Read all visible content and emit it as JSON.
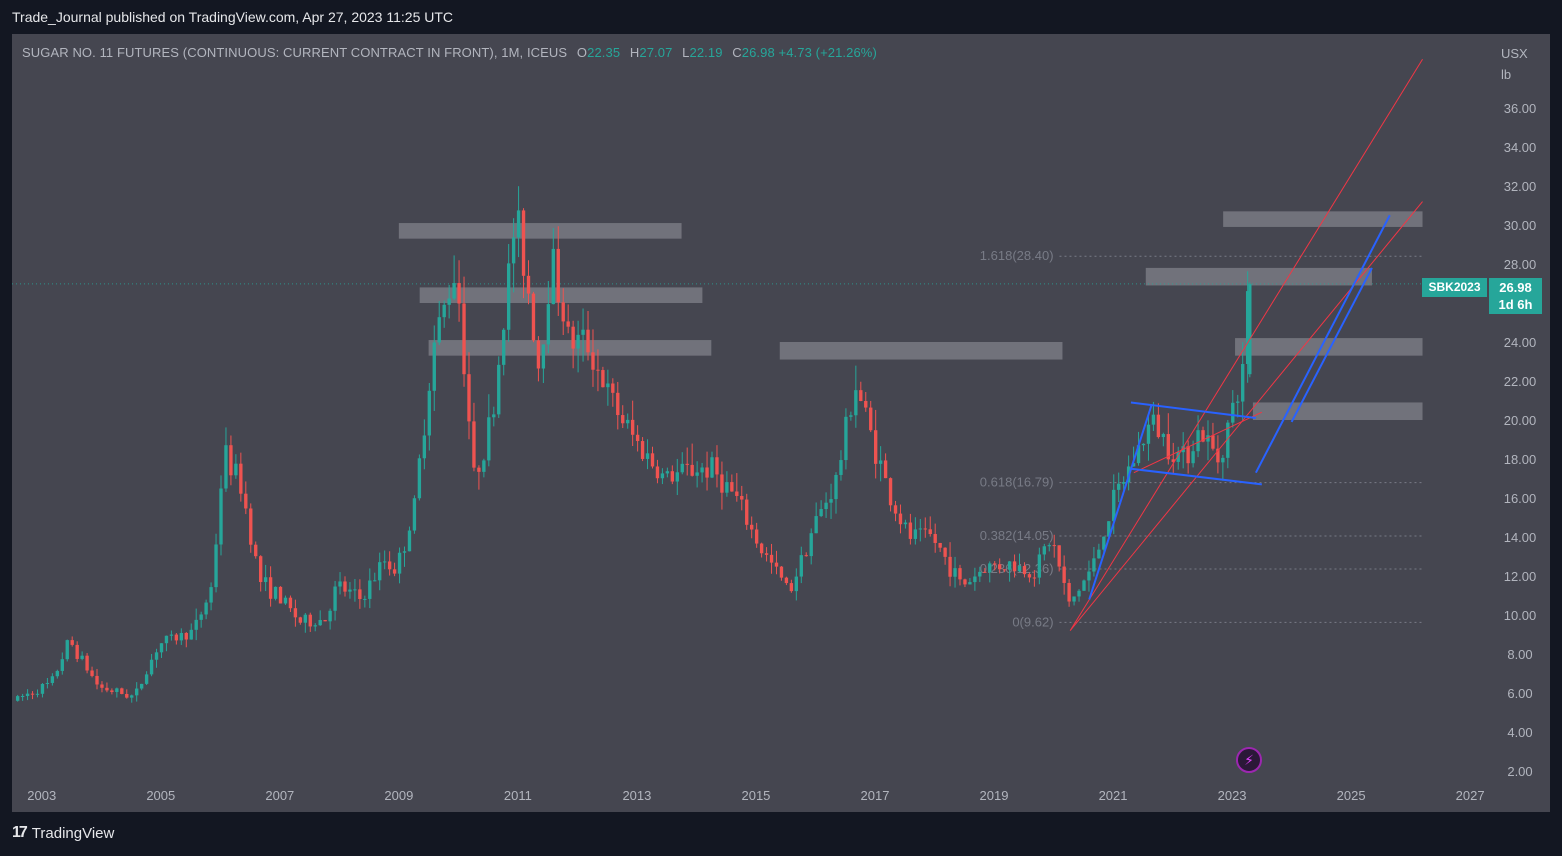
{
  "header": {
    "published_line": "Trade_Journal published on TradingView.com, Apr 27, 2023 11:25 UTC"
  },
  "legend": {
    "title": "SUGAR NO. 11 FUTURES (CONTINUOUS: CURRENT CONTRACT IN FRONT), 1M, ICEUS",
    "o_label": "O",
    "o": "22.35",
    "h_label": "H",
    "h": "27.07",
    "l_label": "L",
    "l": "22.19",
    "c_label": "C",
    "c": "26.98",
    "change": "+4.73 (+21.26%)"
  },
  "axis_unit": {
    "currency": "USX",
    "unit": "lb"
  },
  "price_tag": {
    "symbol": "SBK2023",
    "price": "26.98",
    "countdown": "1d 6h"
  },
  "footer": {
    "brand": "TradingView"
  },
  "colors": {
    "bull": "#26a69a",
    "bear": "#ef5350",
    "background": "#454650",
    "zone": "#80818a",
    "trend_red": "#f23645",
    "trend_blue": "#2962ff"
  },
  "chart_data": {
    "type": "candlestick",
    "title": "SUGAR NO. 11 FUTURES (CONTINUOUS: CURRENT CONTRACT IN FRONT), 1M, ICEUS",
    "x_ticks": [
      "2003",
      "2005",
      "2007",
      "2009",
      "2011",
      "2013",
      "2015",
      "2017",
      "2019",
      "2021",
      "2023",
      "2025",
      "2027"
    ],
    "y_ticks": [
      "2.00",
      "4.00",
      "6.00",
      "8.00",
      "10.00",
      "12.00",
      "14.00",
      "16.00",
      "18.00",
      "20.00",
      "22.00",
      "24.00",
      "26.00",
      "28.00",
      "30.00",
      "32.00",
      "34.00",
      "36.00"
    ],
    "ylim": [
      2,
      38
    ],
    "xlim": [
      2002.5,
      2027.3
    ],
    "anchors": [
      [
        2002.55,
        5.6
      ],
      [
        2003.2,
        6.5
      ],
      [
        2003.5,
        8.7
      ],
      [
        2004.0,
        6.3
      ],
      [
        2004.6,
        5.8
      ],
      [
        2005.0,
        8.5
      ],
      [
        2005.6,
        9.2
      ],
      [
        2005.9,
        11.5
      ],
      [
        2006.1,
        18.4
      ],
      [
        2006.4,
        16.5
      ],
      [
        2006.7,
        11.8
      ],
      [
        2007.0,
        11.0
      ],
      [
        2007.4,
        9.6
      ],
      [
        2007.8,
        9.8
      ],
      [
        2008.0,
        11.5
      ],
      [
        2008.4,
        10.8
      ],
      [
        2008.8,
        12.8
      ],
      [
        2009.0,
        12.3
      ],
      [
        2009.3,
        15.5
      ],
      [
        2009.6,
        23.5
      ],
      [
        2010.0,
        28.0
      ],
      [
        2010.3,
        17.0
      ],
      [
        2010.6,
        20.0
      ],
      [
        2011.0,
        30.5
      ],
      [
        2011.2,
        27.0
      ],
      [
        2011.4,
        22.5
      ],
      [
        2011.6,
        28.5
      ],
      [
        2011.9,
        24.0
      ],
      [
        2012.2,
        24.0
      ],
      [
        2012.6,
        21.0
      ],
      [
        2013.0,
        19.0
      ],
      [
        2013.5,
        17.0
      ],
      [
        2014.0,
        17.5
      ],
      [
        2014.3,
        17.5
      ],
      [
        2014.7,
        16.0
      ],
      [
        2015.1,
        13.5
      ],
      [
        2015.6,
        11.2
      ],
      [
        2016.0,
        14.5
      ],
      [
        2016.4,
        17.0
      ],
      [
        2016.7,
        22.0
      ],
      [
        2016.9,
        20.0
      ],
      [
        2017.3,
        16.0
      ],
      [
        2017.6,
        14.0
      ],
      [
        2018.0,
        14.0
      ],
      [
        2018.5,
        11.5
      ],
      [
        2018.9,
        12.5
      ],
      [
        2019.3,
        12.6
      ],
      [
        2019.7,
        12.2
      ],
      [
        2020.0,
        14.0
      ],
      [
        2020.3,
        10.5
      ],
      [
        2020.7,
        12.5
      ],
      [
        2021.0,
        15.5
      ],
      [
        2021.3,
        17.5
      ],
      [
        2021.7,
        20.0
      ],
      [
        2021.9,
        19.0
      ],
      [
        2022.2,
        18.0
      ],
      [
        2022.5,
        19.5
      ],
      [
        2022.8,
        18.0
      ],
      [
        2023.0,
        20.0
      ],
      [
        2023.22,
        22.35
      ],
      [
        2023.3,
        26.98
      ]
    ],
    "last_candle": {
      "o": 22.35,
      "h": 27.07,
      "l": 22.19,
      "c": 26.98
    },
    "fib_levels": [
      {
        "label": "1.618(28.40)",
        "value": 28.4
      },
      {
        "label": "0.618(16.79)",
        "value": 16.79
      },
      {
        "label": "0.382(14.05)",
        "value": 14.05
      },
      {
        "label": "0.236(12.36)",
        "value": 12.36
      },
      {
        "label": "0(9.62)",
        "value": 9.62
      }
    ],
    "zones": [
      {
        "x0": 2009.0,
        "x1": 2013.75,
        "y0": 29.3,
        "y1": 30.1
      },
      {
        "x0": 2009.35,
        "x1": 2014.1,
        "y0": 26.0,
        "y1": 26.8
      },
      {
        "x0": 2009.5,
        "x1": 2014.25,
        "y0": 23.3,
        "y1": 24.1
      },
      {
        "x0": 2015.4,
        "x1": 2020.15,
        "y0": 23.1,
        "y1": 24.0
      },
      {
        "x0": 2021.55,
        "x1": 2025.35,
        "y0": 26.9,
        "y1": 27.8
      },
      {
        "x0": 2022.85,
        "x1": 2026.2,
        "y0": 29.9,
        "y1": 30.7
      },
      {
        "x0": 2023.05,
        "x1": 2026.2,
        "y0": 23.3,
        "y1": 24.2
      },
      {
        "x0": 2023.35,
        "x1": 2026.2,
        "y0": 20.0,
        "y1": 20.9
      }
    ],
    "trendlines_red": [
      [
        2020.28,
        9.2,
        2026.2,
        31.2
      ],
      [
        2020.28,
        9.2,
        2026.2,
        38.5
      ],
      [
        2021.35,
        17.3,
        2023.5,
        20.4
      ]
    ],
    "trendlines_blue": [
      [
        2021.3,
        20.9,
        2023.4,
        20.1
      ],
      [
        2021.3,
        17.5,
        2023.5,
        16.7
      ],
      [
        2023.4,
        17.3,
        2025.65,
        30.5
      ],
      [
        2024.0,
        19.9,
        2025.35,
        27.8
      ],
      [
        2020.6,
        10.8,
        2021.65,
        20.8
      ]
    ],
    "last_price": 26.98
  }
}
